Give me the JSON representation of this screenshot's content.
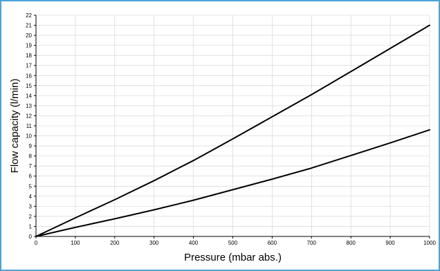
{
  "chart_data": {
    "type": "line",
    "title": "",
    "xlabel": "Pressure (mbar abs.)",
    "ylabel": "Flow capacity (l/min)",
    "xlim": [
      0,
      1000
    ],
    "ylim": [
      0,
      22
    ],
    "x_ticks": [
      0,
      100,
      200,
      300,
      400,
      500,
      600,
      700,
      800,
      900,
      1000
    ],
    "y_ticks": [
      0,
      1,
      2,
      3,
      4,
      5,
      6,
      7,
      8,
      9,
      10,
      11,
      12,
      13,
      14,
      15,
      16,
      17,
      18,
      19,
      20,
      21,
      22
    ],
    "grid": true,
    "series": [
      {
        "x": [
          0,
          100,
          200,
          300,
          400,
          500,
          600,
          700,
          800,
          900,
          1000
        ],
        "y": [
          0,
          1.85,
          3.65,
          5.55,
          7.55,
          9.7,
          11.9,
          14.1,
          16.4,
          18.7,
          21.0
        ]
      },
      {
        "x": [
          0,
          100,
          200,
          300,
          400,
          500,
          600,
          700,
          800,
          900,
          1000
        ],
        "y": [
          0,
          0.9,
          1.75,
          2.65,
          3.6,
          4.65,
          5.7,
          6.8,
          8.05,
          9.3,
          10.6
        ]
      }
    ],
    "colors": {
      "line": "#000000",
      "grid": "#cfcfcf",
      "frame": "#4aa3d8"
    }
  }
}
